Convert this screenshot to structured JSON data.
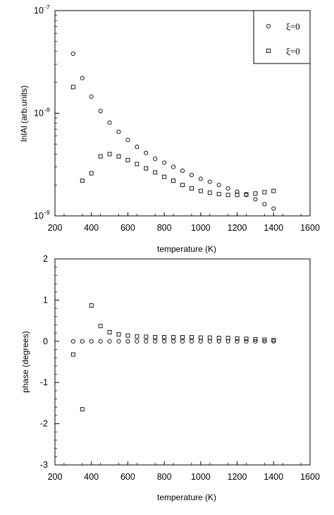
{
  "chart_data": [
    {
      "type": "scatter",
      "xlabel": "temperature (K)",
      "ylabel": "lnlAl (arb.units)",
      "xlim": [
        200,
        1600
      ],
      "ylim": [
        1e-09,
        1e-07
      ],
      "yscale": "log",
      "xticks": [
        200,
        400,
        600,
        800,
        1000,
        1200,
        1400,
        1600
      ],
      "yticks": [
        {
          "value": 1e-09,
          "base": "10",
          "exp": "-9"
        },
        {
          "value": 1e-08,
          "base": "10",
          "exp": "-8"
        },
        {
          "value": 1e-07,
          "base": "10",
          "exp": "-7"
        }
      ],
      "legend_position": "top-right",
      "series": [
        {
          "name": "ξ=0",
          "marker": "circle",
          "x": [
            300,
            350,
            400,
            450,
            500,
            550,
            600,
            650,
            700,
            750,
            800,
            850,
            900,
            950,
            1000,
            1050,
            1100,
            1150,
            1200,
            1250,
            1300,
            1350,
            1400
          ],
          "y": [
            3.8e-08,
            2.2e-08,
            1.45e-08,
            1.05e-08,
            8.1e-09,
            6.6e-09,
            5.5e-09,
            4.7e-09,
            4.1e-09,
            3.6e-09,
            3.3e-09,
            3e-09,
            2.75e-09,
            2.5e-09,
            2.3e-09,
            2.15e-09,
            2e-09,
            1.85e-09,
            1.72e-09,
            1.6e-09,
            1.45e-09,
            1.3e-09,
            1.18e-09
          ]
        },
        {
          "name": "ξ=0",
          "marker": "square",
          "x": [
            300,
            350,
            400,
            450,
            500,
            550,
            600,
            650,
            700,
            750,
            800,
            850,
            900,
            950,
            1000,
            1050,
            1100,
            1150,
            1200,
            1250,
            1300,
            1350,
            1400
          ],
          "y": [
            1.8e-08,
            2.2e-09,
            2.6e-09,
            3.8e-09,
            4e-09,
            3.8e-09,
            3.5e-09,
            3.2e-09,
            2.9e-09,
            2.65e-09,
            2.4e-09,
            2.2e-09,
            2e-09,
            1.85e-09,
            1.75e-09,
            1.68e-09,
            1.63e-09,
            1.6e-09,
            1.6e-09,
            1.62e-09,
            1.65e-09,
            1.7e-09,
            1.75e-09
          ]
        }
      ]
    },
    {
      "type": "scatter",
      "xlabel": "temperature (K)",
      "ylabel": "phase (degrees)",
      "xlim": [
        200,
        1600
      ],
      "ylim": [
        -3,
        2
      ],
      "xticks": [
        200,
        400,
        600,
        800,
        1000,
        1200,
        1400,
        1600
      ],
      "yticks": [
        -3,
        -2,
        -1,
        0,
        1,
        2
      ],
      "series": [
        {
          "marker": "circle",
          "x": [
            300,
            350,
            400,
            450,
            500,
            550,
            600,
            650,
            700,
            750,
            800,
            850,
            900,
            950,
            1000,
            1050,
            1100,
            1150,
            1200,
            1250,
            1300,
            1350,
            1400
          ],
          "y": [
            0,
            0,
            0,
            0,
            0,
            0,
            0,
            0,
            0,
            0,
            0,
            0,
            0,
            0,
            0,
            0,
            0,
            0,
            0,
            0,
            0,
            0,
            0
          ]
        },
        {
          "marker": "square",
          "x": [
            300,
            350,
            400,
            450,
            500,
            550,
            600,
            650,
            700,
            750,
            800,
            850,
            900,
            950,
            1000,
            1050,
            1100,
            1150,
            1200,
            1250,
            1300,
            1350,
            1400
          ],
          "y": [
            -0.32,
            -1.65,
            0.87,
            0.37,
            0.22,
            0.17,
            0.14,
            0.12,
            0.11,
            0.1,
            0.1,
            0.1,
            0.1,
            0.1,
            0.09,
            0.09,
            0.08,
            0.08,
            0.07,
            0.06,
            0.05,
            0.04,
            0.03
          ]
        }
      ]
    }
  ]
}
